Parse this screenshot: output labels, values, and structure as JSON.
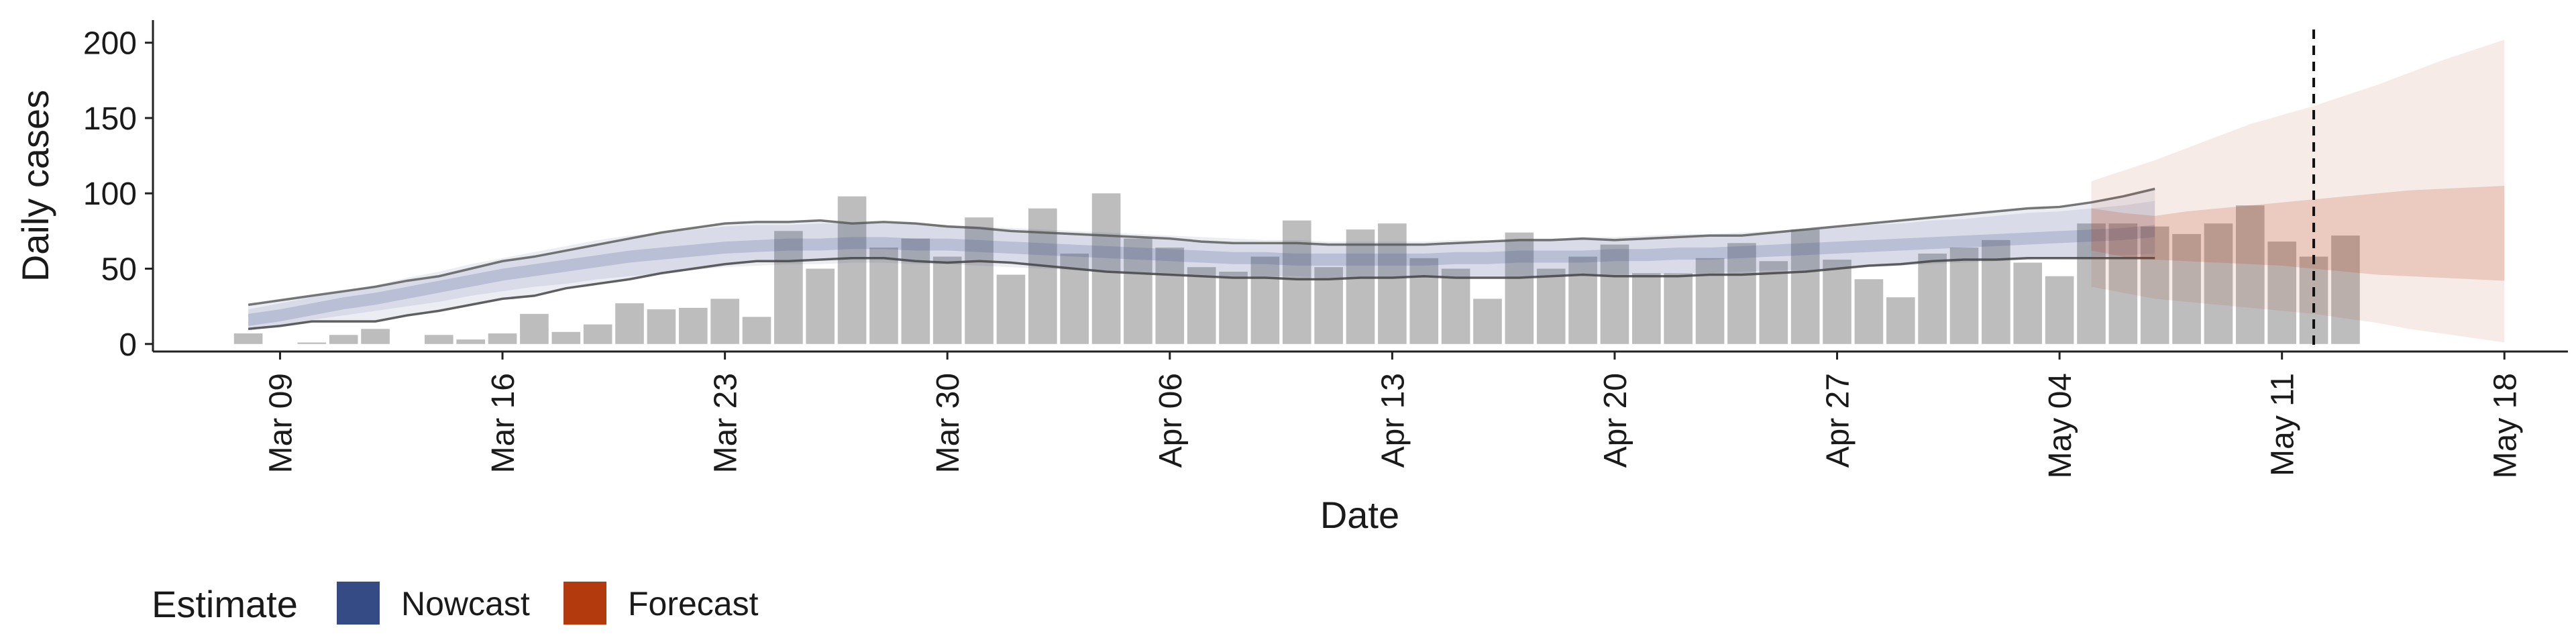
{
  "chart_data": {
    "type": "bar",
    "xlabel": "Date",
    "ylabel": "Daily cases",
    "ylim": [
      -5,
      215
    ],
    "xlim": [
      "2020-03-05",
      "2020-05-20"
    ],
    "y_ticks": [
      0,
      50,
      100,
      150,
      200
    ],
    "x_ticks": [
      {
        "date": "2020-03-09",
        "label": "Mar 09"
      },
      {
        "date": "2020-03-16",
        "label": "Mar 16"
      },
      {
        "date": "2020-03-23",
        "label": "Mar 23"
      },
      {
        "date": "2020-03-30",
        "label": "Mar 30"
      },
      {
        "date": "2020-04-06",
        "label": "Apr 06"
      },
      {
        "date": "2020-04-13",
        "label": "Apr 13"
      },
      {
        "date": "2020-04-20",
        "label": "Apr 20"
      },
      {
        "date": "2020-04-27",
        "label": "Apr 27"
      },
      {
        "date": "2020-05-04",
        "label": "May 04"
      },
      {
        "date": "2020-05-11",
        "label": "May 11"
      },
      {
        "date": "2020-05-18",
        "label": "May 18"
      }
    ],
    "bars": {
      "start_date": "2020-03-08",
      "color": "#bdbdbd",
      "values": [
        7,
        0,
        1,
        6,
        10,
        0,
        6,
        3,
        7,
        20,
        8,
        13,
        27,
        23,
        24,
        30,
        18,
        75,
        50,
        98,
        64,
        70,
        58,
        84,
        46,
        90,
        60,
        100,
        70,
        64,
        51,
        48,
        58,
        82,
        51,
        76,
        80,
        57,
        50,
        30,
        74,
        50,
        58,
        66,
        47,
        47,
        57,
        67,
        55,
        76,
        56,
        43,
        31,
        60,
        64,
        69,
        54,
        45,
        80,
        80,
        78,
        73,
        80,
        92,
        68,
        58,
        72
      ]
    },
    "nowcast": {
      "start_date": "2020-03-08",
      "color": "#3a4e8c",
      "median": [
        16,
        19,
        23,
        27,
        30,
        34,
        38,
        42,
        46,
        49,
        52,
        55,
        58,
        60,
        62,
        64,
        65,
        66,
        66,
        67,
        67,
        66,
        66,
        65,
        64,
        63,
        62,
        61,
        60,
        59,
        58,
        57,
        57,
        56,
        56,
        56,
        56,
        56,
        57,
        57,
        58,
        58,
        58,
        59,
        59,
        60,
        60,
        61,
        62,
        63,
        64,
        65,
        66,
        67,
        68,
        69,
        70,
        71,
        72,
        73,
        75
      ],
      "lower": [
        9,
        12,
        16,
        19,
        22,
        25,
        28,
        32,
        35,
        38,
        40,
        43,
        45,
        47,
        49,
        51,
        52,
        53,
        53,
        54,
        54,
        53,
        53,
        52,
        51,
        50,
        49,
        48,
        48,
        47,
        46,
        45,
        45,
        45,
        44,
        44,
        44,
        44,
        45,
        45,
        45,
        45,
        46,
        46,
        46,
        47,
        47,
        48,
        49,
        49,
        50,
        51,
        52,
        53,
        54,
        55,
        56,
        57,
        58,
        59,
        60
      ],
      "upper": [
        23,
        27,
        31,
        35,
        39,
        44,
        48,
        53,
        57,
        61,
        65,
        69,
        72,
        74,
        76,
        78,
        79,
        79,
        80,
        80,
        80,
        80,
        79,
        78,
        77,
        76,
        75,
        74,
        73,
        72,
        71,
        70,
        69,
        69,
        68,
        68,
        68,
        68,
        69,
        69,
        70,
        70,
        71,
        71,
        72,
        73,
        73,
        74,
        75,
        76,
        77,
        79,
        80,
        82,
        83,
        85,
        87,
        88,
        90,
        92,
        95
      ],
      "lower_line": [
        10,
        12,
        15,
        15,
        15,
        19,
        22,
        26,
        30,
        32,
        37,
        40,
        43,
        47,
        50,
        53,
        55,
        55,
        56,
        57,
        57,
        55,
        54,
        55,
        54,
        52,
        50,
        48,
        47,
        46,
        45,
        44,
        44,
        43,
        43,
        44,
        44,
        45,
        44,
        44,
        44,
        45,
        46,
        45,
        45,
        45,
        46,
        46,
        47,
        48,
        50,
        52,
        53,
        55,
        56,
        56,
        57,
        57,
        57,
        57,
        57
      ],
      "upper_line": [
        26,
        29,
        32,
        35,
        38,
        42,
        45,
        50,
        55,
        58,
        62,
        66,
        70,
        74,
        77,
        80,
        81,
        81,
        82,
        80,
        81,
        80,
        78,
        77,
        75,
        74,
        73,
        72,
        71,
        70,
        68,
        67,
        67,
        67,
        66,
        66,
        66,
        66,
        67,
        68,
        69,
        69,
        70,
        69,
        70,
        71,
        72,
        72,
        74,
        76,
        78,
        80,
        82,
        84,
        86,
        88,
        90,
        91,
        94,
        98,
        103
      ]
    },
    "forecast": {
      "start_date": "2020-05-05",
      "color": "#b5380f",
      "q50_lower": [
        62,
        58,
        56,
        55,
        54,
        53,
        52,
        50,
        48,
        46,
        45,
        44,
        43,
        42
      ],
      "q50_upper": [
        90,
        87,
        85,
        88,
        90,
        92,
        94,
        96,
        98,
        100,
        102,
        103,
        104,
        105
      ],
      "q90_lower": [
        38,
        34,
        30,
        28,
        26,
        24,
        22,
        20,
        17,
        14,
        10,
        7,
        4,
        1
      ],
      "q90_upper": [
        108,
        115,
        122,
        130,
        138,
        146,
        152,
        158,
        165,
        172,
        180,
        188,
        195,
        202
      ]
    },
    "vline_date": "2020-05-12",
    "legend": {
      "title": "Estimate",
      "entries": [
        {
          "label": "Nowcast",
          "color": "#354b85"
        },
        {
          "label": "Forecast",
          "color": "#b33a0c"
        }
      ],
      "position": "bottom-left"
    }
  }
}
